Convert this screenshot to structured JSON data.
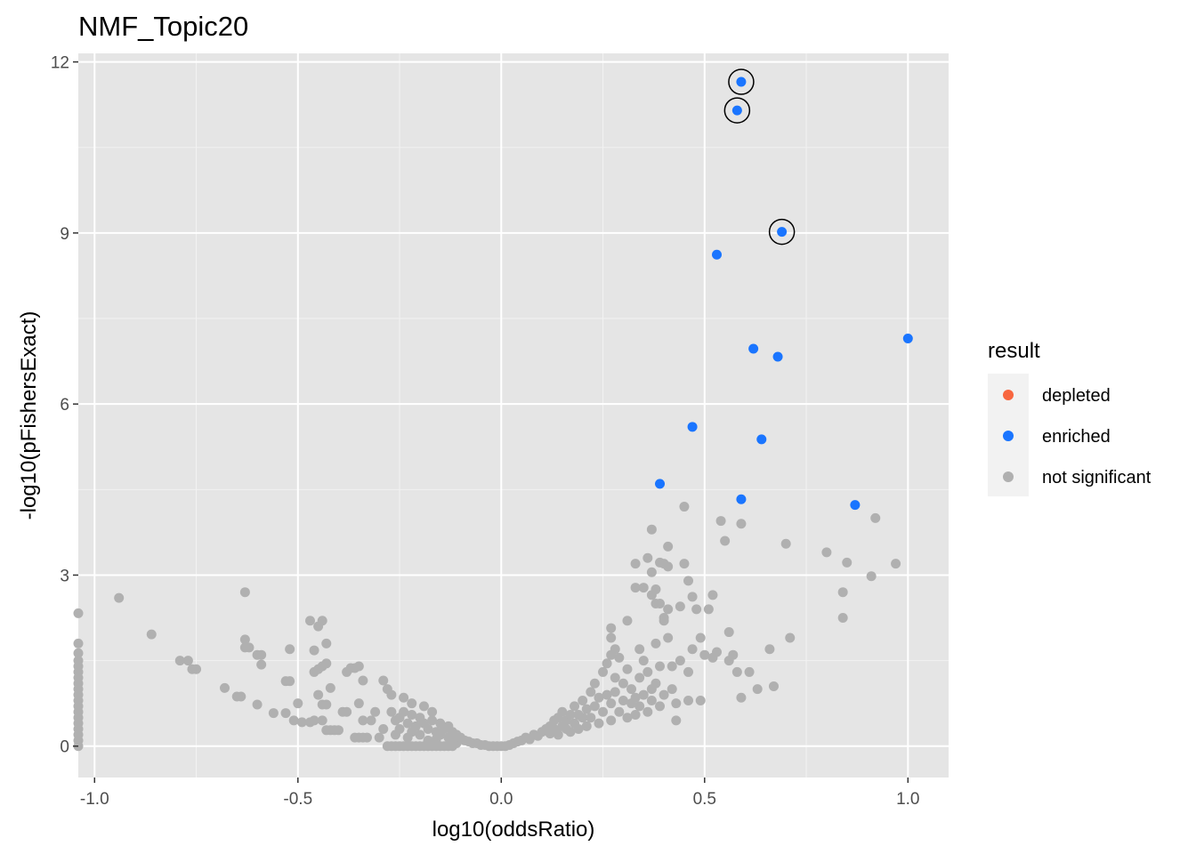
{
  "chart_data": {
    "type": "scatter",
    "title": "NMF_Topic20",
    "xlabel": "log10(oddsRatio)",
    "ylabel": "-log10(pFishersExact)",
    "xlim": [
      -1.04,
      1.1
    ],
    "ylim": [
      -0.55,
      12.15
    ],
    "x_ticks": [
      -1.0,
      -0.5,
      0.0,
      0.5,
      1.0
    ],
    "x_tick_labels": [
      "-1.0",
      "-0.5",
      "0.0",
      "0.5",
      "1.0"
    ],
    "y_ticks": [
      0,
      3,
      6,
      9,
      12
    ],
    "y_tick_labels": [
      "0",
      "3",
      "6",
      "9",
      "12"
    ],
    "grid": true,
    "background": "#e5e5e5",
    "legend": {
      "title": "result",
      "position": "right",
      "entries": [
        {
          "label": "depleted",
          "color": "#f8663f"
        },
        {
          "label": "enriched",
          "color": "#1a75ff"
        },
        {
          "label": "not significant",
          "color": "#b0b0b0"
        }
      ]
    },
    "series": [
      {
        "name": "enriched",
        "color": "#1a75ff",
        "points": [
          [
            0.59,
            11.65
          ],
          [
            0.58,
            11.15
          ],
          [
            0.69,
            9.02
          ],
          [
            0.53,
            8.62
          ],
          [
            0.62,
            6.97
          ],
          [
            0.68,
            6.83
          ],
          [
            1.0,
            7.15
          ],
          [
            0.47,
            5.6
          ],
          [
            0.64,
            5.38
          ],
          [
            0.39,
            4.6
          ],
          [
            0.59,
            4.33
          ],
          [
            0.87,
            4.23
          ]
        ]
      },
      {
        "name": "not significant",
        "color": "#b0b0b0",
        "points": [
          [
            -1.04,
            2.33
          ],
          [
            -1.04,
            1.8
          ],
          [
            -1.04,
            1.63
          ],
          [
            -1.04,
            1.5
          ],
          [
            -1.04,
            1.4
          ],
          [
            -1.04,
            1.3
          ],
          [
            -1.04,
            1.2
          ],
          [
            -1.04,
            1.1
          ],
          [
            -1.04,
            1.0
          ],
          [
            -1.04,
            0.9
          ],
          [
            -1.04,
            0.8
          ],
          [
            -1.04,
            0.7
          ],
          [
            -1.04,
            0.6
          ],
          [
            -1.04,
            0.5
          ],
          [
            -1.04,
            0.4
          ],
          [
            -1.04,
            0.3
          ],
          [
            -1.04,
            0.2
          ],
          [
            -1.04,
            0.1
          ],
          [
            -1.04,
            0.0
          ],
          [
            -0.94,
            2.6
          ],
          [
            -0.86,
            1.96
          ],
          [
            -0.79,
            1.5
          ],
          [
            -0.77,
            1.5
          ],
          [
            -0.76,
            1.35
          ],
          [
            -0.75,
            1.35
          ],
          [
            -0.68,
            1.02
          ],
          [
            -0.65,
            0.87
          ],
          [
            -0.64,
            0.87
          ],
          [
            -0.63,
            2.7
          ],
          [
            -0.63,
            1.87
          ],
          [
            -0.63,
            1.73
          ],
          [
            -0.62,
            1.73
          ],
          [
            -0.6,
            1.6
          ],
          [
            -0.59,
            1.6
          ],
          [
            -0.59,
            1.43
          ],
          [
            -0.6,
            0.73
          ],
          [
            -0.56,
            0.58
          ],
          [
            -0.53,
            0.58
          ],
          [
            -0.53,
            1.14
          ],
          [
            -0.52,
            1.14
          ],
          [
            -0.52,
            1.7
          ],
          [
            -0.51,
            0.45
          ],
          [
            -0.5,
            0.75
          ],
          [
            -0.49,
            0.42
          ],
          [
            -0.47,
            0.42
          ],
          [
            -0.46,
            0.45
          ],
          [
            -0.47,
            2.2
          ],
          [
            -0.45,
            2.1
          ],
          [
            -0.44,
            2.2
          ],
          [
            -0.46,
            1.68
          ],
          [
            -0.45,
            1.35
          ],
          [
            -0.46,
            1.3
          ],
          [
            -0.44,
            1.4
          ],
          [
            -0.43,
            1.45
          ],
          [
            -0.43,
            1.8
          ],
          [
            -0.45,
            0.9
          ],
          [
            -0.44,
            0.73
          ],
          [
            -0.43,
            0.73
          ],
          [
            -0.42,
            1.02
          ],
          [
            -0.44,
            0.45
          ],
          [
            -0.43,
            0.28
          ],
          [
            -0.42,
            0.28
          ],
          [
            -0.41,
            0.28
          ],
          [
            -0.4,
            0.28
          ],
          [
            -0.39,
            0.6
          ],
          [
            -0.38,
            0.6
          ],
          [
            -0.38,
            1.3
          ],
          [
            -0.37,
            1.37
          ],
          [
            -0.36,
            1.37
          ],
          [
            -0.35,
            1.4
          ],
          [
            -0.36,
            0.15
          ],
          [
            -0.35,
            0.15
          ],
          [
            -0.34,
            0.15
          ],
          [
            -0.33,
            0.15
          ],
          [
            -0.34,
            1.15
          ],
          [
            -0.35,
            0.75
          ],
          [
            -0.34,
            0.45
          ],
          [
            -0.32,
            0.45
          ],
          [
            -0.31,
            0.6
          ],
          [
            -0.3,
            0.15
          ],
          [
            -0.29,
            1.15
          ],
          [
            -0.29,
            0.3
          ],
          [
            -0.28,
            0.0
          ],
          [
            -0.27,
            0.0
          ],
          [
            -0.26,
            0.0
          ],
          [
            -0.25,
            0.0
          ],
          [
            -0.24,
            0.0
          ],
          [
            -0.23,
            0.0
          ],
          [
            -0.22,
            0.0
          ],
          [
            -0.21,
            0.0
          ],
          [
            -0.2,
            0.0
          ],
          [
            -0.19,
            0.0
          ],
          [
            -0.18,
            0.0
          ],
          [
            -0.17,
            0.0
          ],
          [
            -0.16,
            0.0
          ],
          [
            -0.15,
            0.0
          ],
          [
            -0.14,
            0.0
          ],
          [
            -0.13,
            0.0
          ],
          [
            -0.12,
            0.0
          ],
          [
            -0.28,
            1.0
          ],
          [
            -0.27,
            0.9
          ],
          [
            -0.27,
            0.6
          ],
          [
            -0.26,
            0.45
          ],
          [
            -0.26,
            0.2
          ],
          [
            -0.25,
            0.5
          ],
          [
            -0.25,
            0.3
          ],
          [
            -0.24,
            0.85
          ],
          [
            -0.24,
            0.6
          ],
          [
            -0.23,
            0.4
          ],
          [
            -0.23,
            0.15
          ],
          [
            -0.22,
            0.75
          ],
          [
            -0.22,
            0.55
          ],
          [
            -0.22,
            0.25
          ],
          [
            -0.21,
            0.35
          ],
          [
            -0.2,
            0.5
          ],
          [
            -0.2,
            0.2
          ],
          [
            -0.19,
            0.7
          ],
          [
            -0.19,
            0.4
          ],
          [
            -0.18,
            0.3
          ],
          [
            -0.18,
            0.1
          ],
          [
            -0.17,
            0.6
          ],
          [
            -0.17,
            0.45
          ],
          [
            -0.16,
            0.25
          ],
          [
            -0.16,
            0.12
          ],
          [
            -0.15,
            0.4
          ],
          [
            -0.15,
            0.2
          ],
          [
            -0.14,
            0.3
          ],
          [
            -0.13,
            0.15
          ],
          [
            -0.13,
            0.35
          ],
          [
            -0.12,
            0.25
          ],
          [
            -0.12,
            0.1
          ],
          [
            -0.11,
            0.2
          ],
          [
            -0.11,
            0.05
          ],
          [
            -0.1,
            0.15
          ],
          [
            -0.09,
            0.1
          ],
          [
            -0.08,
            0.08
          ],
          [
            -0.07,
            0.05
          ],
          [
            -0.06,
            0.05
          ],
          [
            -0.05,
            0.02
          ],
          [
            -0.04,
            0.02
          ],
          [
            -0.03,
            0.0
          ],
          [
            -0.02,
            0.0
          ],
          [
            -0.01,
            0.0
          ],
          [
            0.0,
            0.0
          ],
          [
            0.01,
            0.0
          ],
          [
            0.02,
            0.02
          ],
          [
            0.03,
            0.05
          ],
          [
            0.04,
            0.08
          ],
          [
            0.05,
            0.1
          ],
          [
            0.06,
            0.15
          ],
          [
            0.07,
            0.12
          ],
          [
            0.08,
            0.2
          ],
          [
            0.09,
            0.18
          ],
          [
            0.1,
            0.25
          ],
          [
            0.11,
            0.3
          ],
          [
            0.12,
            0.22
          ],
          [
            0.12,
            0.35
          ],
          [
            0.13,
            0.3
          ],
          [
            0.13,
            0.45
          ],
          [
            0.14,
            0.2
          ],
          [
            0.14,
            0.5
          ],
          [
            0.15,
            0.35
          ],
          [
            0.15,
            0.6
          ],
          [
            0.16,
            0.3
          ],
          [
            0.16,
            0.45
          ],
          [
            0.17,
            0.25
          ],
          [
            0.17,
            0.55
          ],
          [
            0.18,
            0.4
          ],
          [
            0.18,
            0.7
          ],
          [
            0.19,
            0.3
          ],
          [
            0.19,
            0.55
          ],
          [
            0.2,
            0.5
          ],
          [
            0.2,
            0.8
          ],
          [
            0.21,
            0.35
          ],
          [
            0.21,
            0.65
          ],
          [
            0.22,
            0.95
          ],
          [
            0.22,
            0.5
          ],
          [
            0.23,
            0.7
          ],
          [
            0.23,
            1.1
          ],
          [
            0.24,
            0.4
          ],
          [
            0.24,
            0.85
          ],
          [
            0.25,
            1.3
          ],
          [
            0.25,
            0.6
          ],
          [
            0.26,
            0.9
          ],
          [
            0.26,
            1.45
          ],
          [
            0.27,
            0.45
          ],
          [
            0.27,
            0.75
          ],
          [
            0.28,
            1.2
          ],
          [
            0.28,
            0.95
          ],
          [
            0.29,
            1.55
          ],
          [
            0.29,
            0.6
          ],
          [
            0.3,
            0.8
          ],
          [
            0.3,
            1.1
          ],
          [
            0.31,
            0.5
          ],
          [
            0.31,
            1.35
          ],
          [
            0.27,
            1.6
          ],
          [
            0.27,
            1.9
          ],
          [
            0.27,
            2.07
          ],
          [
            0.28,
            1.7
          ],
          [
            0.32,
            0.75
          ],
          [
            0.32,
            1.0
          ],
          [
            0.33,
            0.55
          ],
          [
            0.33,
            0.85
          ],
          [
            0.34,
            1.2
          ],
          [
            0.34,
            0.7
          ],
          [
            0.35,
            1.5
          ],
          [
            0.35,
            0.9
          ],
          [
            0.31,
            2.2
          ],
          [
            0.34,
            1.7
          ],
          [
            0.36,
            1.3
          ],
          [
            0.36,
            0.6
          ],
          [
            0.37,
            1.0
          ],
          [
            0.37,
            0.8
          ],
          [
            0.38,
            1.8
          ],
          [
            0.38,
            1.1
          ],
          [
            0.39,
            0.7
          ],
          [
            0.39,
            1.4
          ],
          [
            0.4,
            0.9
          ],
          [
            0.4,
            2.2
          ],
          [
            0.33,
            3.2
          ],
          [
            0.33,
            2.78
          ],
          [
            0.35,
            2.78
          ],
          [
            0.37,
            2.65
          ],
          [
            0.36,
            3.3
          ],
          [
            0.37,
            3.05
          ],
          [
            0.37,
            3.8
          ],
          [
            0.38,
            2.75
          ],
          [
            0.39,
            3.22
          ],
          [
            0.4,
            3.2
          ],
          [
            0.41,
            3.5
          ],
          [
            0.41,
            3.15
          ],
          [
            0.38,
            2.5
          ],
          [
            0.39,
            2.5
          ],
          [
            0.4,
            2.25
          ],
          [
            0.41,
            2.4
          ],
          [
            0.41,
            1.9
          ],
          [
            0.42,
            1.4
          ],
          [
            0.42,
            1.0
          ],
          [
            0.43,
            0.75
          ],
          [
            0.44,
            2.45
          ],
          [
            0.44,
            1.5
          ],
          [
            0.45,
            3.2
          ],
          [
            0.45,
            4.2
          ],
          [
            0.43,
            0.45
          ],
          [
            0.46,
            1.3
          ],
          [
            0.46,
            0.8
          ],
          [
            0.46,
            2.9
          ],
          [
            0.47,
            2.62
          ],
          [
            0.47,
            1.7
          ],
          [
            0.48,
            2.4
          ],
          [
            0.49,
            1.9
          ],
          [
            0.49,
            0.8
          ],
          [
            0.5,
            1.6
          ],
          [
            0.51,
            2.4
          ],
          [
            0.52,
            2.65
          ],
          [
            0.52,
            1.55
          ],
          [
            0.53,
            1.65
          ],
          [
            0.54,
            3.95
          ],
          [
            0.55,
            3.6
          ],
          [
            0.56,
            2.0
          ],
          [
            0.56,
            1.5
          ],
          [
            0.57,
            1.6
          ],
          [
            0.59,
            3.9
          ],
          [
            0.58,
            1.3
          ],
          [
            0.59,
            0.85
          ],
          [
            0.61,
            1.3
          ],
          [
            0.63,
            1.0
          ],
          [
            0.66,
            1.7
          ],
          [
            0.67,
            1.05
          ],
          [
            0.7,
            3.55
          ],
          [
            0.71,
            1.9
          ],
          [
            0.8,
            3.4
          ],
          [
            0.84,
            2.7
          ],
          [
            0.84,
            2.25
          ],
          [
            0.85,
            3.22
          ],
          [
            0.91,
            2.98
          ],
          [
            0.92,
            4.0
          ],
          [
            0.97,
            3.2
          ]
        ]
      }
    ],
    "highlighted": [
      [
        0.59,
        11.65
      ],
      [
        0.58,
        11.15
      ],
      [
        0.69,
        9.02
      ]
    ]
  }
}
